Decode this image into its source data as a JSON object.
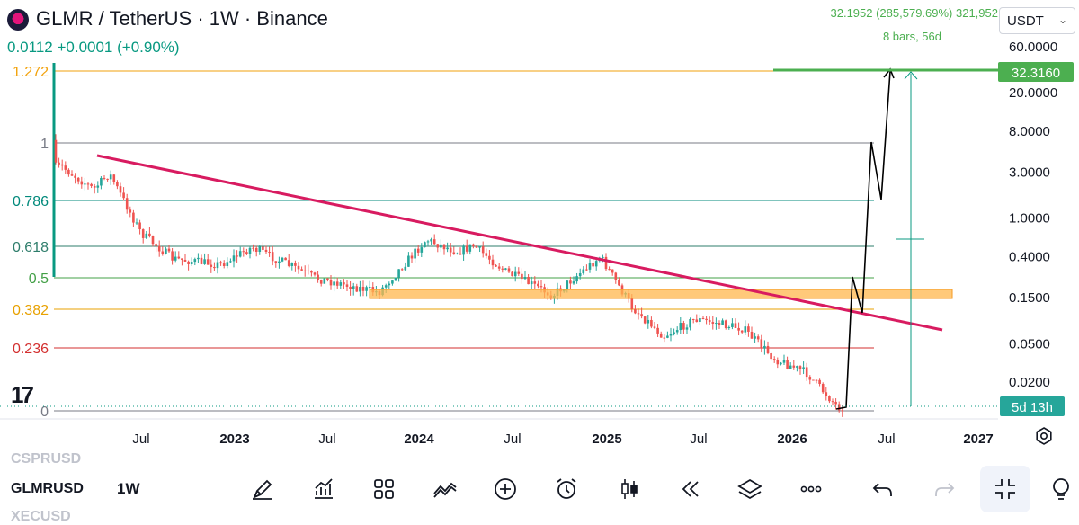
{
  "header": {
    "title": "GLMR / TetherUS · 1W · Binance",
    "quote": "0.0112 +0.0001 (+0.90%)",
    "measure_line1": "32.1952 (285,579.69%) 321,952",
    "measure_line2": "8 bars, 56d",
    "currency": "USDT"
  },
  "colors": {
    "up": "#26a69a",
    "down": "#ef5350",
    "trendline": "#d81b60",
    "zone": "#ffb74d",
    "projection": "#000000",
    "measure": "#089981",
    "target_label": "#4caf50"
  },
  "chart_data": {
    "type": "candlestick",
    "y_scale": "log",
    "price_axis_ticks": [
      "60.0000",
      "20.0000",
      "8.0000",
      "3.0000",
      "1.0000",
      "0.4000",
      "0.1500",
      "0.0500",
      "0.0200"
    ],
    "time_axis_ticks": [
      {
        "label": "Jul",
        "bold": false
      },
      {
        "label": "2023",
        "bold": true
      },
      {
        "label": "Jul",
        "bold": false
      },
      {
        "label": "2024",
        "bold": true
      },
      {
        "label": "Jul",
        "bold": false
      },
      {
        "label": "2025",
        "bold": true
      },
      {
        "label": "Jul",
        "bold": false
      },
      {
        "label": "2026",
        "bold": true
      },
      {
        "label": "Jul",
        "bold": false
      },
      {
        "label": "2027",
        "bold": true
      }
    ],
    "fib_levels": [
      {
        "label": "1.272",
        "color": "#f2a20c"
      },
      {
        "label": "1",
        "color": "#787b86"
      },
      {
        "label": "0.786",
        "color": "#00897b"
      },
      {
        "label": "0.618",
        "color": "#2e7d6b"
      },
      {
        "label": "0.5",
        "color": "#43a047"
      },
      {
        "label": "0.382",
        "color": "#e8a100"
      },
      {
        "label": "0.236",
        "color": "#d32f2f"
      },
      {
        "label": "0",
        "color": "#787b86"
      }
    ],
    "target_price_label": "32.3160",
    "bar_countdown_label": "5d 13h",
    "projection_path": [
      [
        0.0112,
        0
      ],
      [
        0.3,
        0
      ],
      [
        0.1,
        0
      ],
      [
        9.0,
        0
      ],
      [
        1.4,
        0
      ],
      [
        32,
        0
      ]
    ],
    "price_path_key_points": [
      {
        "date": "2022-02",
        "price": 3.4
      },
      {
        "date": "2022-04",
        "price": 2.0
      },
      {
        "date": "2022-05",
        "price": 2.9
      },
      {
        "date": "2022-07",
        "price": 0.7
      },
      {
        "date": "2022-09",
        "price": 0.38
      },
      {
        "date": "2022-12",
        "price": 0.33
      },
      {
        "date": "2023-02",
        "price": 0.5
      },
      {
        "date": "2023-06",
        "price": 0.24
      },
      {
        "date": "2023-10",
        "price": 0.17
      },
      {
        "date": "2024-01",
        "price": 0.6
      },
      {
        "date": "2024-03",
        "price": 0.45
      },
      {
        "date": "2024-04",
        "price": 0.52
      },
      {
        "date": "2024-06",
        "price": 0.28
      },
      {
        "date": "2024-09",
        "price": 0.16
      },
      {
        "date": "2024-12",
        "price": 0.4
      },
      {
        "date": "2025-02",
        "price": 0.12
      },
      {
        "date": "2025-04",
        "price": 0.06
      },
      {
        "date": "2025-06",
        "price": 0.09
      },
      {
        "date": "2025-09",
        "price": 0.072
      },
      {
        "date": "2025-11",
        "price": 0.035
      },
      {
        "date": "2026-01",
        "price": 0.025
      },
      {
        "date": "2026-03",
        "price": 0.011
      },
      {
        "date": "2026-04",
        "price": 0.0112
      }
    ]
  },
  "bottom_bar": {
    "symbol_above": "CSPRUSD",
    "symbol": "GLMRUSD",
    "timeframe": "1W",
    "symbol_below": "XECUSD"
  }
}
